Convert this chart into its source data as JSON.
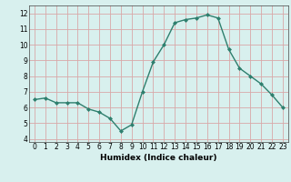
{
  "x": [
    0,
    1,
    2,
    3,
    4,
    5,
    6,
    7,
    8,
    9,
    10,
    11,
    12,
    13,
    14,
    15,
    16,
    17,
    18,
    19,
    20,
    21,
    22,
    23
  ],
  "y": [
    6.5,
    6.6,
    6.3,
    6.3,
    6.3,
    5.9,
    5.7,
    5.3,
    4.5,
    4.9,
    7.0,
    8.9,
    10.0,
    11.4,
    11.6,
    11.7,
    11.9,
    11.7,
    9.7,
    8.5,
    8.0,
    7.5,
    6.8,
    6.0
  ],
  "line_color": "#2e7f6e",
  "marker": "D",
  "marker_size": 2.0,
  "line_width": 1.0,
  "xlabel": "Humidex (Indice chaleur)",
  "xlim": [
    -0.5,
    23.5
  ],
  "ylim": [
    3.8,
    12.5
  ],
  "yticks": [
    4,
    5,
    6,
    7,
    8,
    9,
    10,
    11,
    12
  ],
  "xticks": [
    0,
    1,
    2,
    3,
    4,
    5,
    6,
    7,
    8,
    9,
    10,
    11,
    12,
    13,
    14,
    15,
    16,
    17,
    18,
    19,
    20,
    21,
    22,
    23
  ],
  "background_color": "#d8f0ee",
  "grid_color": "#d8a8a8",
  "tick_fontsize": 5.5,
  "xlabel_fontsize": 6.5
}
